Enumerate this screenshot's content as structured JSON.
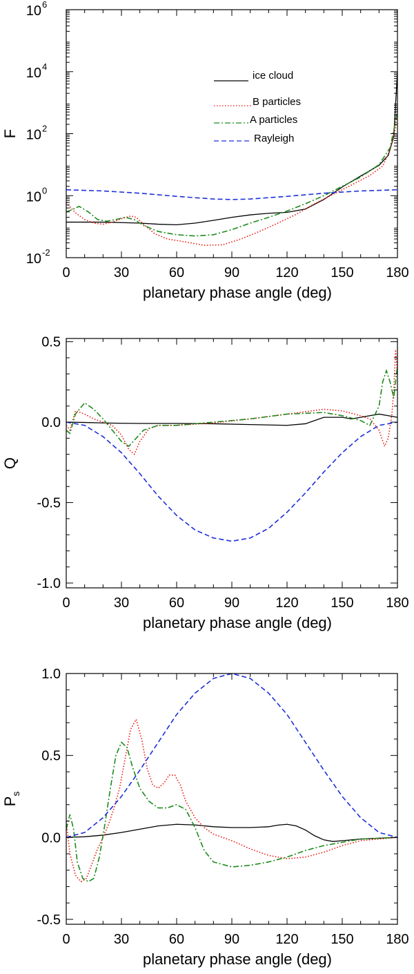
{
  "chart_data": [
    {
      "type": "line",
      "ylabel": "F",
      "xlabel": "planetary phase angle (deg)",
      "yscale": "log",
      "xlim": [
        0,
        180
      ],
      "ylim": [
        0.01,
        1000000
      ],
      "xticks": [
        0,
        30,
        60,
        90,
        120,
        150,
        180
      ],
      "xtick_labels": [
        "0",
        "30",
        "60",
        "90",
        "120",
        "150",
        "180"
      ],
      "yticks": [
        {
          "value": 0.01,
          "base": "10",
          "exp": "-2"
        },
        {
          "value": 1,
          "base": "10",
          "exp": "0"
        },
        {
          "value": 100,
          "base": "10",
          "exp": "2"
        },
        {
          "value": 10000,
          "base": "10",
          "exp": "4"
        },
        {
          "value": 1000000,
          "base": "10",
          "exp": "6"
        }
      ],
      "legend": {
        "position": "upper-right-inside"
      },
      "series": [
        {
          "name": "ice cloud",
          "color": "#000000",
          "style": "solid",
          "x": [
            0,
            10,
            20,
            30,
            40,
            50,
            60,
            70,
            80,
            90,
            100,
            110,
            120,
            130,
            140,
            150,
            160,
            170,
            175,
            178,
            180
          ],
          "y": [
            0.14,
            0.14,
            0.14,
            0.135,
            0.13,
            0.12,
            0.115,
            0.13,
            0.16,
            0.2,
            0.24,
            0.27,
            0.29,
            0.37,
            0.75,
            1.9,
            4.3,
            9.5,
            20,
            80,
            10000
          ]
        },
        {
          "name": "B particles",
          "color": "#e8160c",
          "style": "dotted",
          "x": [
            0,
            5,
            10,
            15,
            20,
            25,
            30,
            35,
            38,
            42,
            48,
            55,
            65,
            75,
            85,
            95,
            105,
            115,
            125,
            135,
            145,
            155,
            165,
            172,
            176,
            179,
            180
          ],
          "y": [
            0.6,
            0.28,
            0.17,
            0.13,
            0.12,
            0.14,
            0.18,
            0.22,
            0.2,
            0.12,
            0.06,
            0.04,
            0.032,
            0.025,
            0.026,
            0.04,
            0.07,
            0.13,
            0.25,
            0.55,
            1.1,
            2.2,
            4.5,
            9,
            30,
            150,
            800
          ]
        },
        {
          "name": "A particles",
          "color": "#1c8a1c",
          "style": "dashdot",
          "x": [
            0,
            3,
            7,
            12,
            17,
            22,
            27,
            32,
            37,
            42,
            50,
            60,
            70,
            80,
            90,
            100,
            110,
            120,
            130,
            140,
            150,
            160,
            170,
            176,
            179,
            180
          ],
          "y": [
            0.3,
            0.35,
            0.45,
            0.3,
            0.17,
            0.15,
            0.17,
            0.2,
            0.17,
            0.11,
            0.07,
            0.055,
            0.05,
            0.055,
            0.08,
            0.13,
            0.2,
            0.32,
            0.55,
            1.0,
            2.0,
            4.0,
            10,
            35,
            250,
            600
          ]
        },
        {
          "name": "Rayleigh",
          "color": "#1c2fdb",
          "style": "dashed",
          "x": [
            0,
            20,
            40,
            60,
            80,
            90,
            100,
            120,
            140,
            160,
            180
          ],
          "y": [
            1.55,
            1.42,
            1.2,
            0.95,
            0.78,
            0.75,
            0.78,
            0.95,
            1.2,
            1.42,
            1.55
          ]
        }
      ]
    },
    {
      "type": "line",
      "ylabel": "Q",
      "xlabel": "planetary phase angle (deg)",
      "xlim": [
        0,
        180
      ],
      "ylim": [
        -1.03,
        0.52
      ],
      "xticks": [
        0,
        30,
        60,
        90,
        120,
        150,
        180
      ],
      "xtick_labels": [
        "0",
        "30",
        "60",
        "90",
        "120",
        "150",
        "180"
      ],
      "yticks": [
        -1.0,
        -0.5,
        0.0,
        0.5
      ],
      "ytick_labels": [
        "-1.0",
        "-0.5",
        "0.0",
        "0.5"
      ],
      "series": [
        {
          "name": "ice cloud",
          "color": "#000000",
          "style": "solid",
          "x": [
            0,
            10,
            20,
            30,
            40,
            60,
            80,
            100,
            120,
            130,
            140,
            150,
            155,
            160,
            165,
            170,
            175,
            180
          ],
          "y": [
            0.0,
            -0.002,
            -0.005,
            -0.007,
            -0.008,
            -0.008,
            -0.01,
            -0.015,
            -0.02,
            -0.01,
            0.03,
            0.03,
            0.02,
            0.03,
            0.04,
            0.05,
            0.04,
            0.03
          ]
        },
        {
          "name": "B particles",
          "color": "#e8160c",
          "style": "dotted",
          "x": [
            0,
            2,
            5,
            10,
            15,
            20,
            25,
            30,
            34,
            37,
            40,
            45,
            50,
            60,
            80,
            100,
            120,
            140,
            150,
            160,
            165,
            170,
            173,
            175,
            177,
            178,
            179,
            180
          ],
          "y": [
            -0.02,
            -0.05,
            0.07,
            0.05,
            0.02,
            0.0,
            -0.02,
            -0.08,
            -0.17,
            -0.2,
            -0.12,
            -0.04,
            -0.02,
            -0.02,
            -0.005,
            0.02,
            0.05,
            0.08,
            0.07,
            0.04,
            0.02,
            -0.05,
            -0.15,
            -0.1,
            0.05,
            0.2,
            0.45,
            0.3
          ]
        },
        {
          "name": "A particles",
          "color": "#1c8a1c",
          "style": "dashdot",
          "x": [
            0,
            2,
            5,
            10,
            15,
            20,
            25,
            30,
            34,
            38,
            42,
            50,
            60,
            80,
            100,
            120,
            140,
            150,
            160,
            165,
            170,
            172,
            174,
            176,
            178,
            180
          ],
          "y": [
            -0.05,
            -0.07,
            0.05,
            0.12,
            0.08,
            0.02,
            -0.05,
            -0.12,
            -0.15,
            -0.1,
            -0.05,
            -0.02,
            -0.02,
            0.0,
            0.02,
            0.05,
            0.06,
            0.04,
            0.01,
            -0.02,
            0.1,
            0.25,
            0.32,
            0.25,
            0.15,
            0.35
          ]
        },
        {
          "name": "Rayleigh",
          "color": "#1c2fdb",
          "style": "dashed",
          "x": [
            0,
            10,
            20,
            30,
            40,
            50,
            60,
            70,
            80,
            90,
            100,
            110,
            120,
            130,
            140,
            150,
            160,
            170,
            180
          ],
          "y": [
            0.0,
            -0.02,
            -0.09,
            -0.19,
            -0.32,
            -0.46,
            -0.58,
            -0.67,
            -0.72,
            -0.74,
            -0.72,
            -0.66,
            -0.56,
            -0.44,
            -0.31,
            -0.19,
            -0.09,
            -0.02,
            0.0
          ]
        }
      ]
    },
    {
      "type": "line",
      "ylabel": "P",
      "ylabel_sub": "s",
      "xlabel": "planetary phase angle (deg)",
      "xlim": [
        0,
        180
      ],
      "ylim": [
        -0.53,
        1.0
      ],
      "xticks": [
        0,
        30,
        60,
        90,
        120,
        150,
        180
      ],
      "xtick_labels": [
        "0",
        "30",
        "60",
        "90",
        "120",
        "150",
        "180"
      ],
      "yticks": [
        -0.5,
        0.0,
        0.5,
        1.0
      ],
      "ytick_labels": [
        "-0.5",
        "0.0",
        "0.5",
        "1.0"
      ],
      "series": [
        {
          "name": "ice cloud",
          "color": "#000000",
          "style": "solid",
          "x": [
            0,
            10,
            20,
            30,
            40,
            50,
            60,
            70,
            80,
            90,
            100,
            110,
            115,
            120,
            125,
            130,
            135,
            140,
            145,
            150,
            160,
            170,
            180
          ],
          "y": [
            0.0,
            0.004,
            0.014,
            0.03,
            0.05,
            0.07,
            0.08,
            0.076,
            0.065,
            0.06,
            0.06,
            0.065,
            0.075,
            0.08,
            0.07,
            0.045,
            0.01,
            -0.015,
            -0.025,
            -0.02,
            -0.01,
            -0.005,
            0.0
          ]
        },
        {
          "name": "B particles",
          "color": "#e8160c",
          "style": "dotted",
          "x": [
            0,
            2,
            5,
            8,
            11,
            14,
            17,
            20,
            23,
            26,
            29,
            32,
            35,
            38,
            41,
            44,
            47,
            50,
            53,
            56,
            59,
            62,
            65,
            70,
            75,
            80,
            85,
            90,
            100,
            110,
            120,
            130,
            140,
            150,
            160,
            170,
            180
          ],
          "y": [
            0.1,
            -0.1,
            -0.23,
            -0.27,
            -0.25,
            -0.16,
            -0.07,
            0.0,
            0.08,
            0.18,
            0.3,
            0.48,
            0.66,
            0.72,
            0.6,
            0.42,
            0.32,
            0.3,
            0.33,
            0.38,
            0.38,
            0.32,
            0.22,
            0.12,
            0.06,
            0.02,
            0.0,
            -0.02,
            -0.07,
            -0.11,
            -0.13,
            -0.12,
            -0.09,
            -0.05,
            -0.02,
            -0.01,
            0.0
          ]
        },
        {
          "name": "A particles",
          "color": "#1c8a1c",
          "style": "dashdot",
          "x": [
            0,
            2,
            4,
            6,
            9,
            12,
            15,
            18,
            21,
            24,
            27,
            30,
            33,
            36,
            40,
            45,
            50,
            55,
            60,
            65,
            70,
            75,
            80,
            90,
            100,
            110,
            120,
            130,
            140,
            150,
            160,
            170,
            180
          ],
          "y": [
            0.05,
            0.14,
            0.05,
            -0.15,
            -0.25,
            -0.27,
            -0.25,
            -0.12,
            0.08,
            0.3,
            0.5,
            0.58,
            0.55,
            0.43,
            0.3,
            0.22,
            0.18,
            0.18,
            0.2,
            0.17,
            0.06,
            -0.08,
            -0.15,
            -0.18,
            -0.17,
            -0.15,
            -0.12,
            -0.08,
            -0.05,
            -0.03,
            -0.01,
            -0.005,
            0.0
          ]
        },
        {
          "name": "Rayleigh",
          "color": "#1c2fdb",
          "style": "dashed",
          "x": [
            0,
            10,
            20,
            30,
            40,
            50,
            60,
            70,
            80,
            90,
            100,
            110,
            120,
            130,
            140,
            150,
            160,
            170,
            180
          ],
          "y": [
            0.0,
            0.03,
            0.12,
            0.25,
            0.41,
            0.58,
            0.75,
            0.88,
            0.97,
            1.0,
            0.97,
            0.88,
            0.75,
            0.58,
            0.41,
            0.25,
            0.12,
            0.03,
            0.0
          ]
        }
      ]
    }
  ]
}
